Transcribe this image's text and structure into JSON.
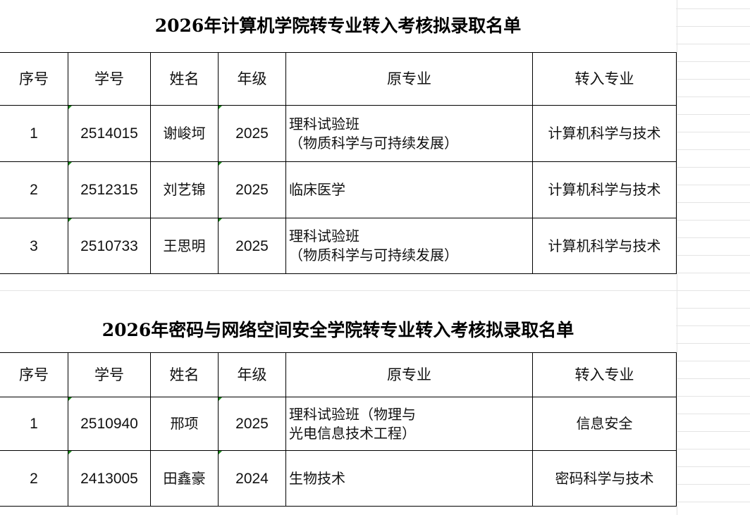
{
  "sheets": [
    {
      "title": "2026年计算机学院转专业转入考核拟录取名单",
      "headers": [
        "序号",
        "学号",
        "姓名",
        "年级",
        "原专业",
        "转入专业"
      ],
      "rows": [
        {
          "no": "1",
          "id": "2514015",
          "name": "谢峻坷",
          "grade": "2025",
          "from": [
            "理科试验班",
            "（物质科学与可持续发展）"
          ],
          "to": "计算机科学与技术"
        },
        {
          "no": "2",
          "id": "2512315",
          "name": "刘艺锦",
          "grade": "2025",
          "from": [
            "临床医学"
          ],
          "to": "计算机科学与技术"
        },
        {
          "no": "3",
          "id": "2510733",
          "name": "王思明",
          "grade": "2025",
          "from": [
            "理科试验班",
            "（物质科学与可持续发展）"
          ],
          "to": "计算机科学与技术"
        }
      ]
    },
    {
      "title": "2026年密码与网络空间安全学院转专业转入考核拟录取名单",
      "headers": [
        "序号",
        "学号",
        "姓名",
        "年级",
        "原专业",
        "转入专业"
      ],
      "rows": [
        {
          "no": "1",
          "id": "2510940",
          "name": "邢项",
          "grade": "2025",
          "from": [
            "理科试验班（物理与",
            "光电信息技术工程）"
          ],
          "to": "信息安全"
        },
        {
          "no": "2",
          "id": "2413005",
          "name": "田鑫豪",
          "grade": "2024",
          "from": [
            "生物技术"
          ],
          "to": "密码科学与技术"
        }
      ]
    }
  ],
  "colors": {
    "text_number_marker": "#1a8a1a"
  }
}
